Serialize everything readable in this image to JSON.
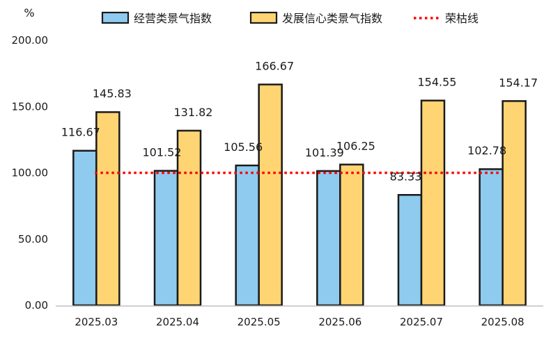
{
  "chart_data": {
    "type": "bar",
    "y_unit": "%",
    "categories": [
      "2025.03",
      "2025.04",
      "2025.05",
      "2025.06",
      "2025.07",
      "2025.08"
    ],
    "series": [
      {
        "name": "经营类景气指数",
        "values": [
          116.67,
          101.52,
          105.56,
          101.39,
          83.33,
          102.78
        ],
        "color": "#8ecbee"
      },
      {
        "name": "发展信心类景气指数",
        "values": [
          145.83,
          131.82,
          166.67,
          106.25,
          154.55,
          154.17
        ],
        "color": "#ffd573"
      }
    ],
    "reference_line": {
      "name": "荣枯线",
      "value": 100,
      "color": "#ff0000",
      "style": "dotted"
    },
    "ylim": [
      0,
      200
    ],
    "yticks": [
      "0.00",
      "50.00",
      "100.00",
      "150.00",
      "200.00"
    ],
    "legend_position": "top",
    "grid": false,
    "bar_outline_color": "#1a1a1a"
  }
}
